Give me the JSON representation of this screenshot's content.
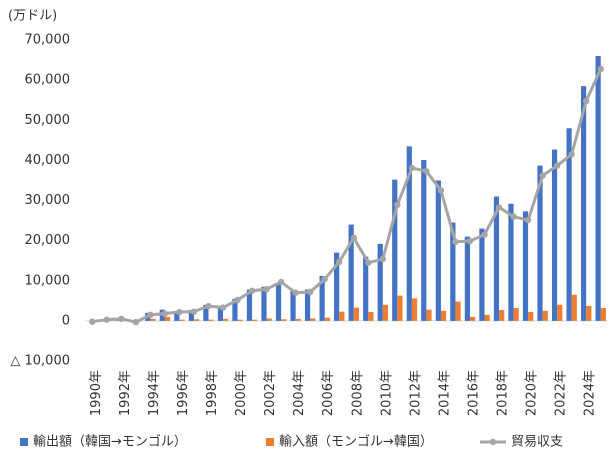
{
  "chart_data": {
    "type": "bar_line",
    "y_label": "(万ドル)",
    "categories": [
      "1990年",
      null,
      "1992年",
      null,
      "1994年",
      null,
      "1996年",
      null,
      "1998年",
      null,
      "2000年",
      null,
      "2002年",
      null,
      "2004年",
      null,
      "2006年",
      null,
      "2008年",
      null,
      "2010年",
      null,
      "2012年",
      null,
      "2014年",
      null,
      "2016年",
      null,
      "2018年",
      null,
      "2020年",
      null,
      "2022年",
      null,
      "2024年",
      null
    ],
    "series": [
      {
        "name": "輸出額（韓国→モンゴル）",
        "type": "bar",
        "color": "#4472c4",
        "values": [
          0,
          100,
          500,
          200,
          2000,
          2800,
          2500,
          2700,
          4000,
          3800,
          5500,
          7800,
          8500,
          9500,
          7500,
          7800,
          11200,
          17000,
          24000,
          16000,
          19200,
          35200,
          43500,
          40100,
          35000,
          24500,
          21000,
          23000,
          31000,
          29200,
          27300,
          38700,
          42700,
          48000,
          58500,
          66000
        ]
      },
      {
        "name": "輸入額（モンゴル→韓国）",
        "type": "bar",
        "color": "#ed7d31",
        "values": [
          0,
          100,
          300,
          200,
          500,
          1000,
          300,
          400,
          300,
          500,
          300,
          300,
          600,
          400,
          500,
          600,
          800,
          2300,
          3300,
          2200,
          4000,
          6300,
          5600,
          2800,
          2500,
          4800,
          1000,
          1500,
          2700,
          3200,
          2200,
          2500,
          4000,
          6500,
          3700,
          3200
        ]
      },
      {
        "name": "貿易収支",
        "type": "line",
        "color": "#a5a5a5",
        "values": [
          -200,
          300,
          500,
          -300,
          1500,
          1800,
          2200,
          2300,
          3700,
          3300,
          5200,
          7500,
          7900,
          9700,
          7000,
          7200,
          10400,
          14700,
          20700,
          14500,
          15400,
          28900,
          38100,
          37300,
          32500,
          19700,
          19900,
          21500,
          28300,
          26000,
          25100,
          36200,
          38700,
          41500,
          54800,
          62800
        ]
      }
    ],
    "ylim": [
      -10000,
      70000
    ],
    "yticks": [
      {
        "value": -10000,
        "label": "△ 10,000"
      },
      0,
      {
        "value": 10000,
        "label": "10,000"
      },
      {
        "value": 20000,
        "label": "20,000"
      },
      {
        "value": 30000,
        "label": "30,000"
      },
      {
        "value": 40000,
        "label": "40,000"
      },
      {
        "value": 50000,
        "label": "50,000"
      },
      {
        "value": 60000,
        "label": "60,000"
      },
      {
        "value": 70000,
        "label": "70,000"
      }
    ],
    "grid": false
  }
}
